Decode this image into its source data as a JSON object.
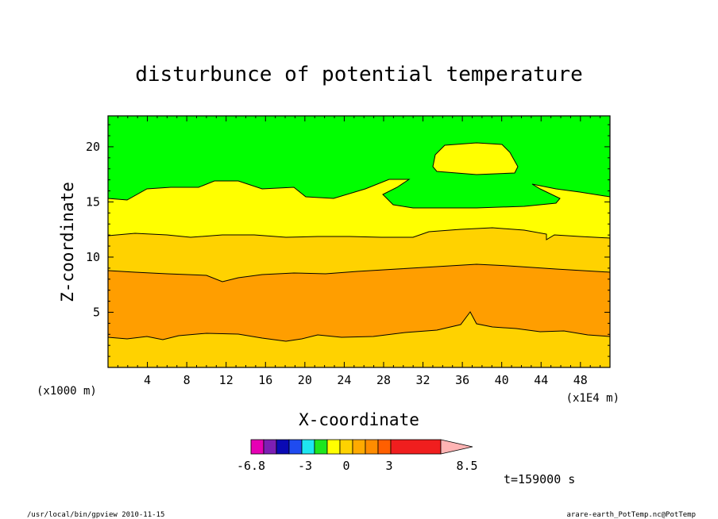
{
  "chart_data": {
    "type": "contour",
    "title": "disturbunce of potential temperature",
    "xlabel": "X-coordinate",
    "ylabel": "Z-coordinate",
    "x_unit": "(x1E4 m)",
    "y_unit": "(x1000 m)",
    "xlim": [
      0,
      51
    ],
    "ylim": [
      0,
      22.8
    ],
    "x_ticks": [
      4,
      8,
      12,
      16,
      20,
      24,
      28,
      32,
      36,
      40,
      44,
      48
    ],
    "y_ticks": [
      5,
      10,
      15,
      20
    ],
    "colorbar": {
      "colors": [
        "#e600b4",
        "#7d1fb4",
        "#0a0ab4",
        "#1f4bf0",
        "#1ee6f0",
        "#1ee61e",
        "#ffff00",
        "#ffd200",
        "#ffaa00",
        "#ff8c00",
        "#ff5f00",
        "#f01e1e",
        "#ff7f7f",
        "#ffb4b4"
      ],
      "tick_labels": [
        "-6.8",
        "-3",
        "0",
        "3",
        "8.5"
      ]
    },
    "regions": [
      {
        "level": "band_2.5_to_3.5",
        "color": "#ffd200"
      },
      {
        "level": "band_1.5_to_2.5",
        "color": "#ff9e00"
      },
      {
        "level": "band_0_to_1.5",
        "color": "#ffd200"
      },
      {
        "level": "band_minus1.5_to_0",
        "color": "#ffff00"
      },
      {
        "level": "band_below_minus1.5",
        "color": "#00ff00"
      }
    ],
    "time_label": "t=159000 s"
  },
  "footer": {
    "left": "/usr/local/bin/gpview   2010-11-15",
    "right": "arare-earth_PotTemp.nc@PotTemp"
  }
}
